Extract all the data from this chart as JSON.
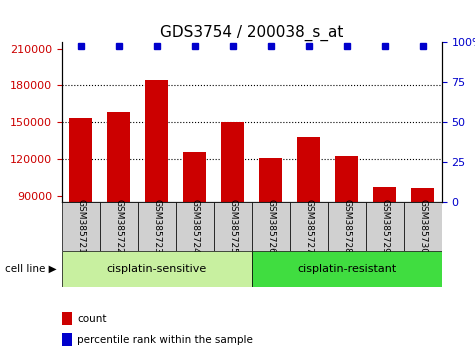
{
  "title": "GDS3754 / 200038_s_at",
  "samples": [
    "GSM385721",
    "GSM385722",
    "GSM385723",
    "GSM385724",
    "GSM385725",
    "GSM385726",
    "GSM385727",
    "GSM385728",
    "GSM385729",
    "GSM385730"
  ],
  "counts": [
    153000,
    158000,
    184000,
    126000,
    150000,
    121000,
    138000,
    122000,
    97000,
    96000
  ],
  "percentile_ranks": [
    98,
    98,
    98,
    98,
    98,
    98,
    98,
    98,
    98,
    98
  ],
  "ylim_left": [
    85000,
    215000
  ],
  "ylim_right": [
    0,
    100
  ],
  "yticks_left": [
    90000,
    120000,
    150000,
    180000,
    210000
  ],
  "yticks_right": [
    0,
    25,
    50,
    75,
    100
  ],
  "yticks_right_labels": [
    "0",
    "25",
    "50",
    "75",
    "100%"
  ],
  "grid_ticks": [
    120000,
    150000,
    180000
  ],
  "bar_color": "#cc0000",
  "percentile_color": "#0000cc",
  "group1_label": "cisplatin-sensitive",
  "group2_label": "cisplatin-resistant",
  "group1_color": "#c8f0a0",
  "group2_color": "#40dd40",
  "gray_color": "#d0d0d0",
  "cell_line_label": "cell line",
  "legend_count_label": "count",
  "legend_percentile_label": "percentile rank within the sample",
  "title_fontsize": 11,
  "tick_fontsize": 8,
  "sample_fontsize": 6.5,
  "group_fontsize": 8,
  "legend_fontsize": 7.5
}
